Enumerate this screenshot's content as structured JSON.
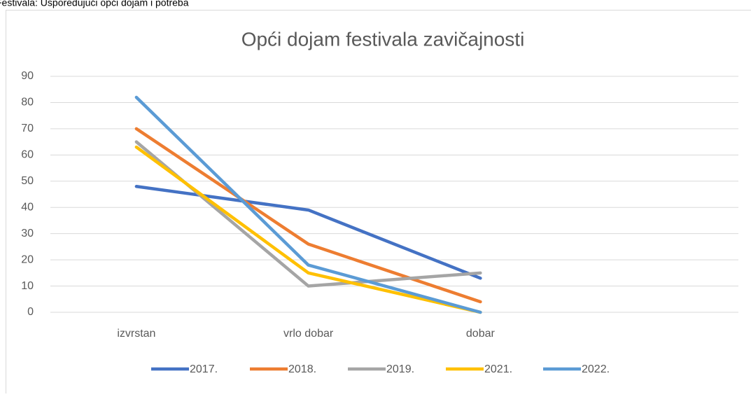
{
  "caption": "Festivala: Uspoređujući opći dojam i potreba",
  "chart_data": {
    "type": "line",
    "title": "Opći dojam festivala zavičajnosti",
    "categories": [
      "izvrstan",
      "vrlo dobar",
      "dobar",
      null
    ],
    "series": [
      {
        "name": "2017.",
        "color": "#4472c4",
        "values": [
          48,
          39,
          13,
          null
        ]
      },
      {
        "name": "2018.",
        "color": "#ed7d31",
        "values": [
          70,
          26,
          4,
          null
        ]
      },
      {
        "name": "2019.",
        "color": "#a5a5a5",
        "values": [
          65,
          10,
          15,
          null
        ]
      },
      {
        "name": "2021.",
        "color": "#ffc000",
        "values": [
          63,
          15,
          0,
          null
        ]
      },
      {
        "name": "2022.",
        "color": "#5b9bd5",
        "values": [
          82,
          18,
          0,
          null
        ]
      }
    ],
    "ylim": [
      0,
      90
    ],
    "yticks": [
      0,
      10,
      20,
      30,
      40,
      50,
      60,
      70,
      80,
      90
    ],
    "grid": true,
    "legend": "bottom"
  }
}
